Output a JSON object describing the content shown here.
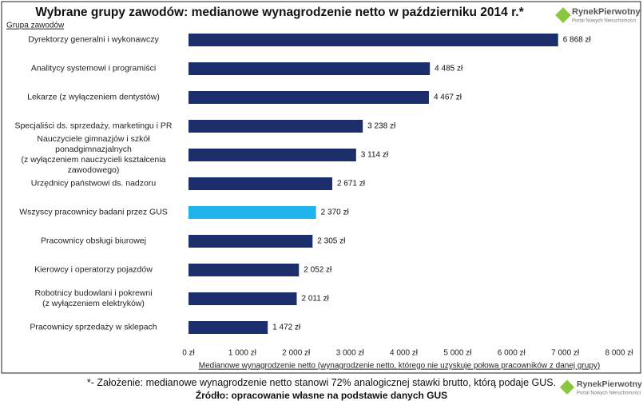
{
  "chart_data": {
    "type": "barh",
    "title": "Wybrane grupy zawodów: medianowe wynagrodzenie netto w październiku 2014 r.*",
    "y_axis_title": "Grupa zawodów",
    "x_axis_title": "Medianowe wynagrodzenie netto (wynagrodzenie netto, którego nie uzyskuje połowa pracowników z danej grupy)",
    "categories": [
      "Dyrektorzy generalni i wykonawczy",
      "Analitycy systemowi i programiści",
      "Lekarze (z wyłączeniem dentystów)",
      "Specjaliści ds. sprzedaży, marketingu i PR",
      "Nauczyciele gimnazjów i szkół ponadgimnazjalnych\n(z wyłączeniem nauczycieli kształcenia zawodowego)",
      "Urzędnicy państwowi ds. nadzoru",
      "Wszyscy pracownicy badani przez GUS",
      "Pracownicy obsługi biurowej",
      "Kierowcy i operatorzy pojazdów",
      "Robotnicy budowlani i pokrewni\n(z wyłączeniem elektryków)",
      "Pracownicy sprzedaży w sklepach"
    ],
    "values": [
      6868,
      4485,
      4467,
      3238,
      3114,
      2671,
      2370,
      2305,
      2052,
      2011,
      1472
    ],
    "value_labels": [
      "6 868 zł",
      "4 485 zł",
      "4 467 zł",
      "3 238 zł",
      "3 114 zł",
      "2 671 zł",
      "2 370 zł",
      "2 305 zł",
      "2 052 zł",
      "2 011 zł",
      "1 472 zł"
    ],
    "colors": [
      "#1c2e6b",
      "#1c2e6b",
      "#1c2e6b",
      "#1c2e6b",
      "#1c2e6b",
      "#1c2e6b",
      "#1fb4ee",
      "#1c2e6b",
      "#1c2e6b",
      "#1c2e6b",
      "#1c2e6b"
    ],
    "xlim": [
      0,
      8000
    ],
    "xticks": [
      {
        "value": 0,
        "label": "0 zł"
      },
      {
        "value": 1000,
        "label": "1 000 zł"
      },
      {
        "value": 2000,
        "label": "2 000 zł"
      },
      {
        "value": 3000,
        "label": "3 000 zł"
      },
      {
        "value": 4000,
        "label": "4 000 zł"
      },
      {
        "value": 5000,
        "label": "5 000 zł"
      },
      {
        "value": 6000,
        "label": "6 000 zł"
      },
      {
        "value": 7000,
        "label": "7 000 zł"
      },
      {
        "value": 8000,
        "label": "8 000 zł"
      }
    ],
    "grid": false
  },
  "logo": {
    "name": "RynekPierwotny",
    "tagline": "Portal Nowych Nieruchomości"
  },
  "footer": {
    "note": "*- Założenie: medianowe wynagrodzenie netto stanowi 72% analogicznej stawki brutto, którą podaje GUS.",
    "source": "Źródło: opracowanie własne na podstawie danych GUS"
  }
}
